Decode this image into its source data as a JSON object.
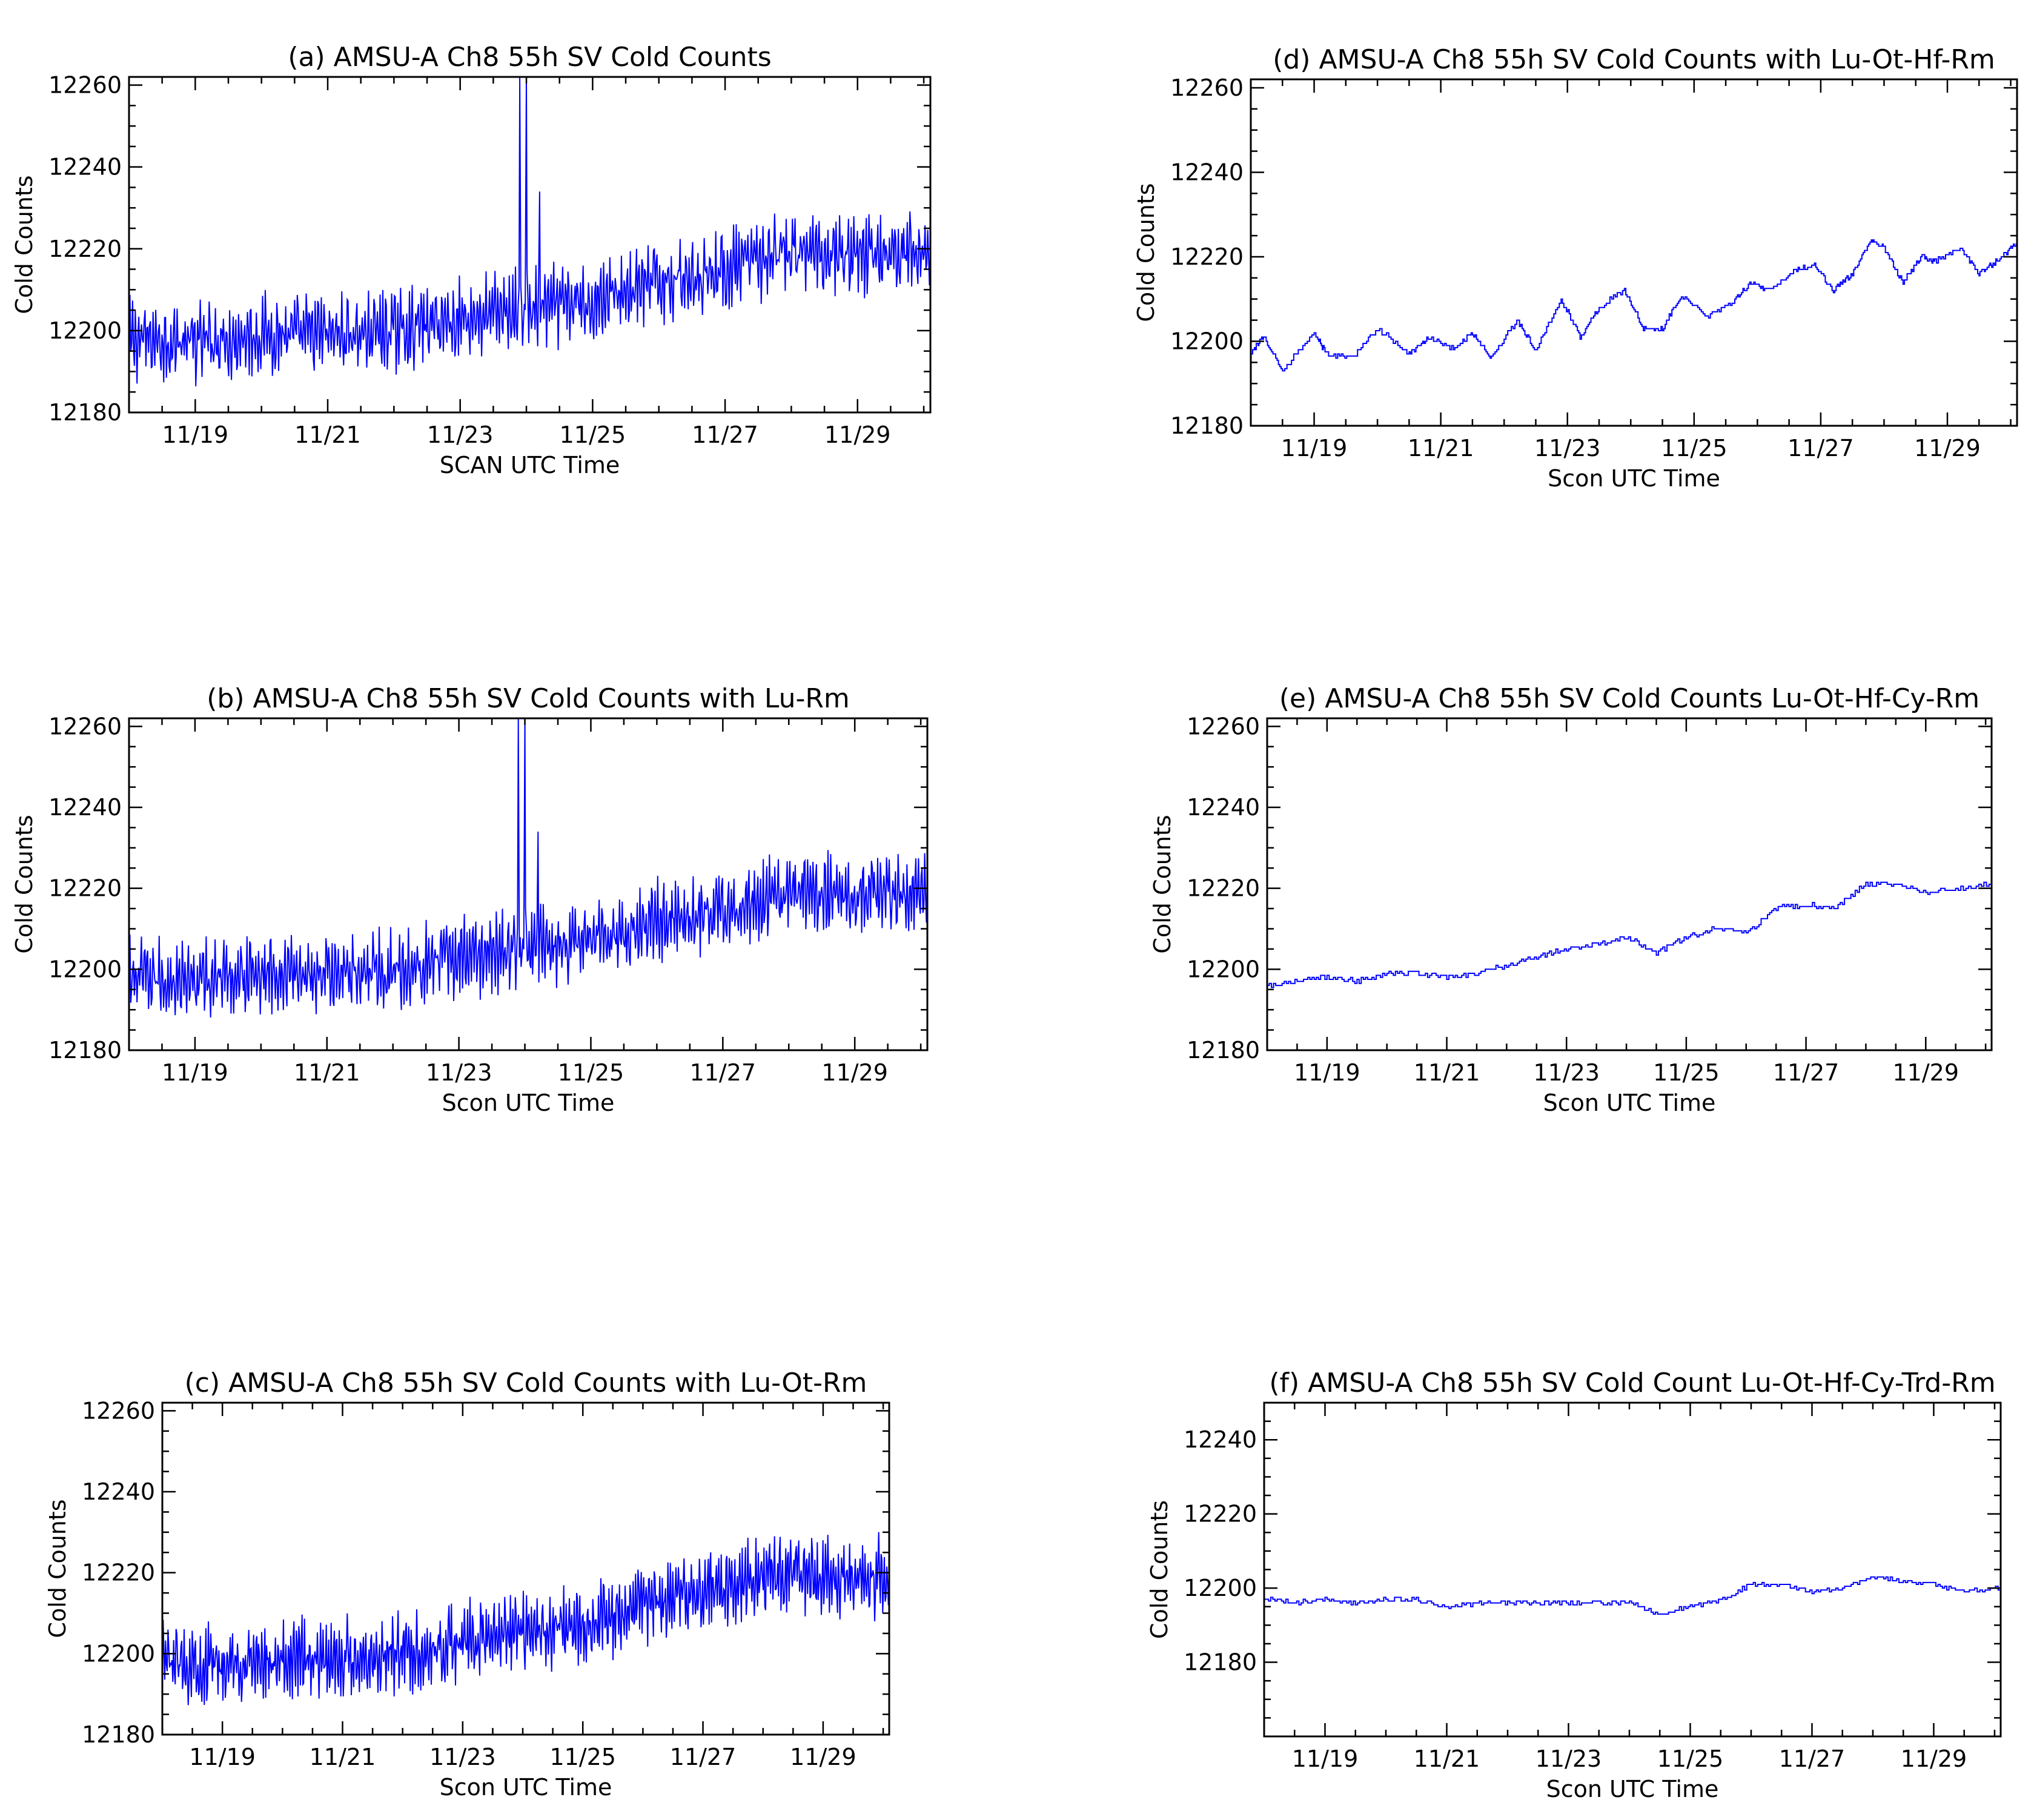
{
  "figure": {
    "series_color": "#0000ff",
    "axis_color": "#000000"
  },
  "chart_data": [
    {
      "id": "a",
      "type": "line",
      "title": "(a)  AMSU-A Ch8 55h SV Cold Counts",
      "xlabel": "SCAN UTC Time",
      "ylabel": "Cold Counts",
      "xlim": [
        18.0,
        30.1
      ],
      "ylim": [
        12180,
        12262
      ],
      "y_ticks": [
        12180,
        12200,
        12220,
        12240,
        12260
      ],
      "x_ticks": [
        19,
        21,
        23,
        25,
        27,
        29
      ],
      "x_tick_labels": [
        "11/19",
        "11/21",
        "11/23",
        "11/25",
        "11/27",
        "11/29"
      ],
      "trend_x": [
        18.0,
        19.0,
        20.0,
        21.0,
        22.0,
        23.0,
        24.0,
        25.0,
        26.0,
        27.0,
        28.0,
        29.0,
        30.1
      ],
      "trend_y": [
        12198,
        12197,
        12199,
        12199,
        12200,
        12203,
        12205,
        12207,
        12212,
        12215,
        12219,
        12219,
        12219
      ],
      "noise_amplitude": 9,
      "spikes": [
        {
          "x": 23.9,
          "y": 12262
        },
        {
          "x": 24.0,
          "y": 12262
        },
        {
          "x": 24.2,
          "y": 12234
        }
      ]
    },
    {
      "id": "b",
      "type": "line",
      "title": "(b)  AMSU-A Ch8 55h SV Cold Counts with Lu-Rm",
      "xlabel": "Scon UTC Time",
      "ylabel": "Cold Counts",
      "xlim": [
        18.0,
        30.1
      ],
      "ylim": [
        12180,
        12262
      ],
      "y_ticks": [
        12180,
        12200,
        12220,
        12240,
        12260
      ],
      "x_ticks": [
        19,
        21,
        23,
        25,
        27,
        29
      ],
      "x_tick_labels": [
        "11/19",
        "11/21",
        "11/23",
        "11/25",
        "11/27",
        "11/29"
      ],
      "trend_x": [
        18.0,
        19.0,
        20.0,
        21.0,
        22.0,
        23.0,
        24.0,
        25.0,
        26.0,
        27.0,
        28.0,
        29.0,
        30.1
      ],
      "trend_y": [
        12198,
        12197,
        12199,
        12199,
        12200,
        12203,
        12205,
        12207,
        12212,
        12215,
        12219,
        12219,
        12219
      ],
      "noise_amplitude": 9,
      "spikes": [
        {
          "x": 23.9,
          "y": 12262
        },
        {
          "x": 24.0,
          "y": 12262
        },
        {
          "x": 24.2,
          "y": 12234
        }
      ]
    },
    {
      "id": "c",
      "type": "line",
      "title": "(c)  AMSU-A Ch8 55h SV Cold Counts with Lu-Ot-Rm",
      "xlabel": "Scon UTC Time",
      "ylabel": "Cold Counts",
      "xlim": [
        18.0,
        30.1
      ],
      "ylim": [
        12180,
        12262
      ],
      "y_ticks": [
        12180,
        12200,
        12220,
        12240,
        12260
      ],
      "x_ticks": [
        19,
        21,
        23,
        25,
        27,
        29
      ],
      "x_tick_labels": [
        "11/19",
        "11/21",
        "11/23",
        "11/25",
        "11/27",
        "11/29"
      ],
      "trend_x": [
        18.0,
        19.0,
        20.0,
        21.0,
        22.0,
        23.0,
        24.0,
        25.0,
        26.0,
        27.0,
        28.0,
        29.0,
        30.1
      ],
      "trend_y": [
        12198,
        12197,
        12199,
        12199,
        12200,
        12203,
        12205,
        12207,
        12212,
        12215,
        12219,
        12219,
        12219
      ],
      "noise_amplitude": 9,
      "spikes": []
    },
    {
      "id": "d",
      "type": "line",
      "title": "(d)  AMSU-A Ch8 55h SV Cold Counts with Lu-Ot-Hf-Rm",
      "xlabel": "Scon UTC Time",
      "ylabel": "Cold Counts",
      "xlim": [
        18.0,
        30.1
      ],
      "ylim": [
        12180,
        12262
      ],
      "y_ticks": [
        12180,
        12200,
        12220,
        12240,
        12260
      ],
      "x_ticks": [
        19,
        21,
        23,
        25,
        27,
        29
      ],
      "x_tick_labels": [
        "11/19",
        "11/21",
        "11/23",
        "11/25",
        "11/27",
        "11/29"
      ],
      "x": [
        18.0,
        18.2,
        18.5,
        19.0,
        19.2,
        19.6,
        20.0,
        20.5,
        20.8,
        21.2,
        21.5,
        21.8,
        22.2,
        22.5,
        22.9,
        23.2,
        23.5,
        23.9,
        24.2,
        24.5,
        24.8,
        25.2,
        25.6,
        25.9,
        26.2,
        26.6,
        26.9,
        27.2,
        27.5,
        27.8,
        28.0,
        28.3,
        28.6,
        28.8,
        29.2,
        29.5,
        29.7,
        30.0,
        30.1
      ],
      "y": [
        12197,
        12201,
        12193,
        12202,
        12197,
        12196,
        12203,
        12197,
        12201,
        12198,
        12202,
        12196,
        12205,
        12198,
        12210,
        12201,
        12208,
        12212,
        12203,
        12203,
        12211,
        12206,
        12209,
        12214,
        12212,
        12217,
        12218,
        12212,
        12216,
        12224,
        12222,
        12214,
        12220,
        12219,
        12222,
        12216,
        12218,
        12222,
        12223
      ]
    },
    {
      "id": "e",
      "type": "line",
      "title": "(e)  AMSU-A Ch8 55h SV Cold Counts Lu-Ot-Hf-Cy-Rm",
      "xlabel": "Scon UTC Time",
      "ylabel": "Cold Counts",
      "xlim": [
        18.0,
        30.1
      ],
      "ylim": [
        12180,
        12262
      ],
      "y_ticks": [
        12180,
        12200,
        12220,
        12240,
        12260
      ],
      "x_ticks": [
        19,
        21,
        23,
        25,
        27,
        29
      ],
      "x_tick_labels": [
        "11/19",
        "11/21",
        "11/23",
        "11/25",
        "11/27",
        "11/29"
      ],
      "x": [
        18.0,
        18.5,
        19.0,
        19.5,
        20.0,
        20.5,
        21.0,
        21.5,
        22.0,
        22.5,
        23.0,
        23.5,
        24.0,
        24.5,
        25.0,
        25.5,
        26.0,
        26.5,
        27.0,
        27.5,
        28.0,
        28.5,
        29.0,
        29.5,
        30.1
      ],
      "y": [
        12196,
        12197,
        12198,
        12197,
        12199,
        12199,
        12198,
        12199,
        12201,
        12203,
        12205,
        12206,
        12208,
        12204,
        12208,
        12210,
        12209,
        12215,
        12216,
        12215,
        12221,
        12221,
        12219,
        12220,
        12221
      ]
    },
    {
      "id": "f",
      "type": "line",
      "title": "(f)  AMSU-A Ch8 55h SV Cold Count Lu-Ot-Hf-Cy-Trd-Rm",
      "xlabel": "Scon UTC Time",
      "ylabel": "Cold Counts",
      "xlim": [
        18.0,
        30.1
      ],
      "ylim": [
        12160,
        12250
      ],
      "y_ticks": [
        12180,
        12200,
        12220,
        12240
      ],
      "x_ticks": [
        19,
        21,
        23,
        25,
        27,
        29
      ],
      "x_tick_labels": [
        "11/19",
        "11/21",
        "11/23",
        "11/25",
        "11/27",
        "11/29"
      ],
      "x": [
        18.0,
        18.5,
        19.0,
        19.5,
        20.0,
        20.5,
        21.0,
        21.5,
        22.0,
        22.5,
        23.0,
        23.5,
        24.0,
        24.5,
        25.0,
        25.5,
        26.0,
        26.5,
        27.0,
        27.5,
        28.0,
        28.5,
        29.0,
        29.5,
        30.1
      ],
      "y": [
        12197,
        12196,
        12197,
        12196,
        12197,
        12197,
        12195,
        12196,
        12196,
        12196,
        12196,
        12196,
        12196,
        12193,
        12195,
        12197,
        12201,
        12201,
        12199,
        12200,
        12203,
        12202,
        12201,
        12199,
        12200
      ]
    }
  ]
}
